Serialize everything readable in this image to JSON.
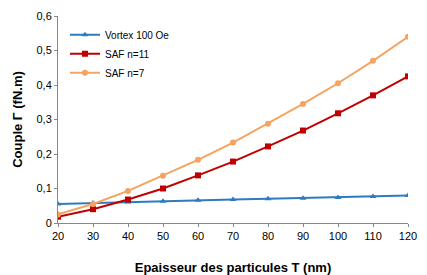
{
  "chart_data": {
    "type": "line",
    "x_label": "Epaisseur des particules T (nm)",
    "y_label": "Couple Γ (fN.m)",
    "x": [
      20,
      30,
      40,
      50,
      60,
      70,
      80,
      90,
      100,
      110,
      120
    ],
    "series": [
      {
        "name": "Vortex 100 Oe",
        "color": "#2e7bbf",
        "marker": "triangle-up",
        "values": [
          0.055,
          0.058,
          0.061,
          0.063,
          0.066,
          0.068,
          0.07,
          0.072,
          0.074,
          0.077,
          0.08
        ]
      },
      {
        "name": "SAF n=11",
        "color": "#c00000",
        "marker": "square",
        "values": [
          0.018,
          0.04,
          0.068,
          0.1,
          0.138,
          0.178,
          0.222,
          0.268,
          0.318,
          0.37,
          0.425
        ]
      },
      {
        "name": "SAF n=7",
        "color": "#f4a460",
        "marker": "circle",
        "values": [
          0.025,
          0.055,
          0.093,
          0.137,
          0.183,
          0.233,
          0.288,
          0.345,
          0.405,
          0.47,
          0.54
        ]
      }
    ],
    "xlim": [
      20,
      120
    ],
    "xticks": [
      20,
      30,
      40,
      50,
      60,
      70,
      80,
      90,
      100,
      110,
      120
    ],
    "ylim": [
      0,
      0.6
    ],
    "yticks": [
      0,
      {
        "value": 0.1,
        "label": "0,1"
      },
      {
        "value": 0.2,
        "label": "0,2"
      },
      {
        "value": 0.3,
        "label": "0,3"
      },
      {
        "value": 0.4,
        "label": "0,4"
      },
      {
        "value": 0.5,
        "label": "0,5"
      },
      {
        "value": 0.6,
        "label": "0,6"
      }
    ],
    "grid": false,
    "legend": "top-left"
  }
}
